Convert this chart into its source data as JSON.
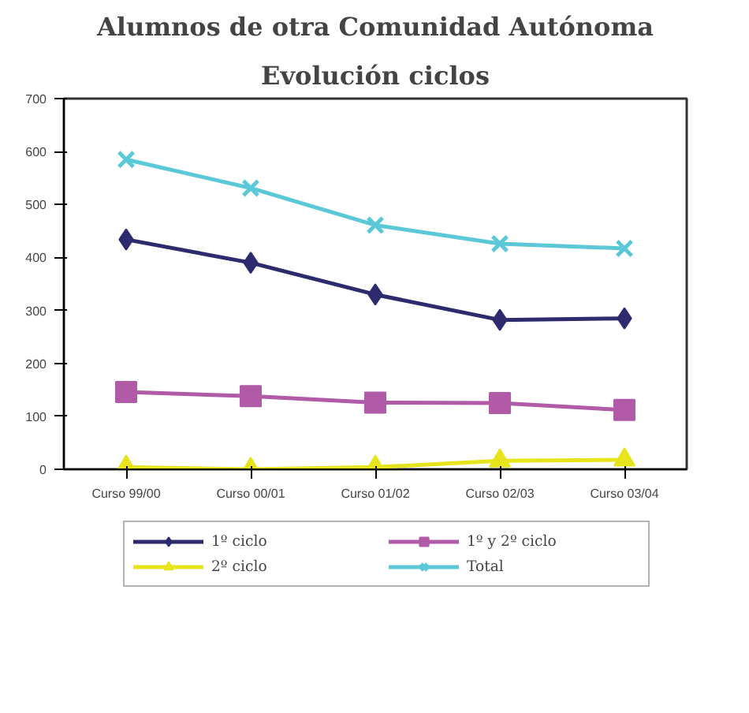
{
  "chart_data": {
    "type": "line",
    "title": "Alumnos de otra Comunidad Autónoma",
    "subtitle": "Evolución ciclos",
    "categories": [
      "Curso 99/00",
      "Curso 00/01",
      "Curso 01/02",
      "Curso 02/03",
      "Curso 03/04"
    ],
    "series": [
      {
        "name": "1º ciclo",
        "color": "#2e2a6e",
        "marker": "diamond",
        "values": [
          434,
          390,
          330,
          282,
          285
        ]
      },
      {
        "name": "1º y 2º ciclo",
        "color": "#b05aa8",
        "marker": "square",
        "values": [
          146,
          138,
          126,
          125,
          112
        ]
      },
      {
        "name": "2º ciclo",
        "color": "#e8e41c",
        "marker": "triangle",
        "values": [
          4,
          0,
          4,
          16,
          18
        ]
      },
      {
        "name": "Total",
        "color": "#5bc8d8",
        "marker": "cross",
        "values": [
          585,
          531,
          461,
          426,
          417
        ]
      }
    ],
    "ylim": [
      0,
      700
    ],
    "yticks": [
      0,
      100,
      200,
      300,
      400,
      500,
      600,
      700
    ],
    "grid": false,
    "legend": "bottom",
    "line_style": "solid"
  }
}
